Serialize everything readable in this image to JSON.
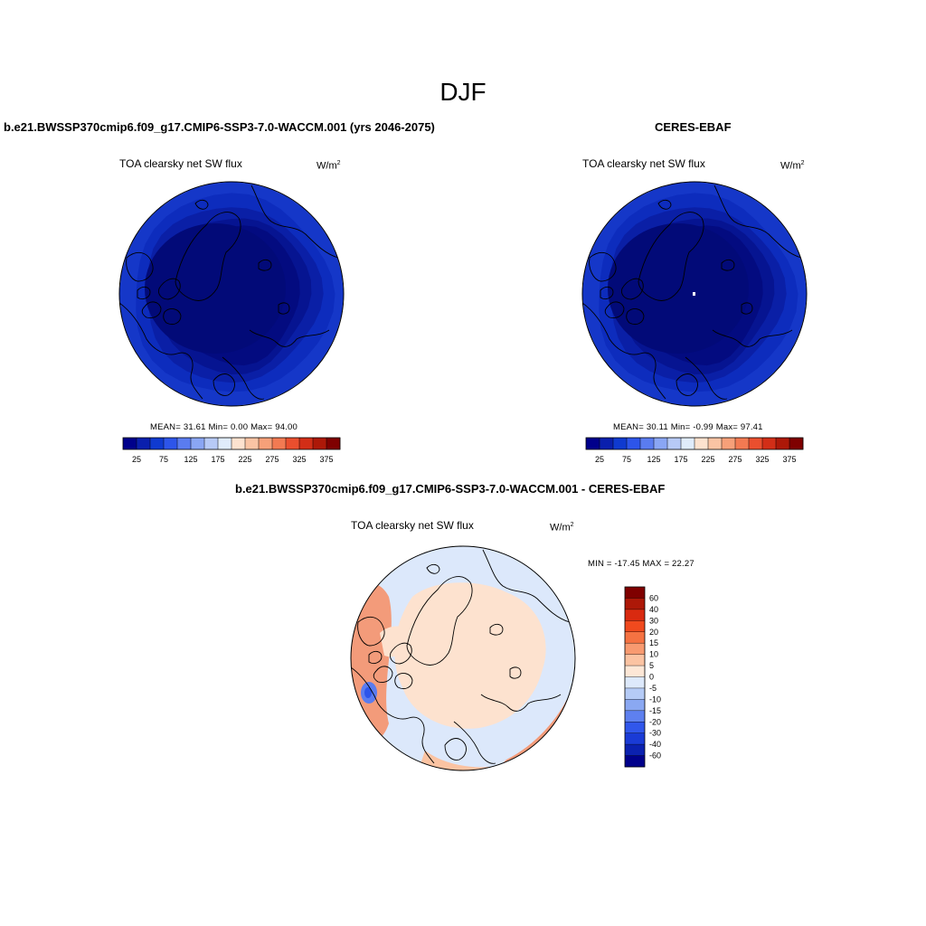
{
  "page": {
    "title": "DJF"
  },
  "panels": [
    {
      "case_title": "b.e21.BWSSP370cmip6.f09_g17.CMIP6-SSP3-7.0-WACCM.001 (yrs 2046-2075)",
      "variable": "TOA clearsky net SW flux",
      "units": "W/m",
      "units_exp": "2",
      "stats": "MEAN=  31.61  Min=   0.00  Max=  94.00"
    },
    {
      "case_title": "CERES-EBAF",
      "variable": "TOA clearsky net SW flux",
      "units": "W/m",
      "units_exp": "2",
      "stats": "MEAN=  30.11  Min=  -0.99  Max=  97.41"
    }
  ],
  "difference": {
    "case_title": "b.e21.BWSSP370cmip6.f09_g17.CMIP6-SSP3-7.0-WACCM.001 - CERES-EBAF",
    "variable": "TOA clearsky net SW flux",
    "units": "W/m",
    "units_exp": "2",
    "stats": "MIN = -17.45 MAX =  22.27"
  },
  "colorbar_abs": {
    "colors": [
      "#00008b",
      "#0a1fad",
      "#0f3ad0",
      "#2d55ea",
      "#5a7cf0",
      "#8aa6f4",
      "#b7caf7",
      "#e0ecfb",
      "#fde2cf",
      "#fac4a4",
      "#f6a079",
      "#f27a52",
      "#ea4f2e",
      "#d22e17",
      "#ad1808",
      "#7f0000"
    ],
    "labels": [
      "25",
      "75",
      "125",
      "175",
      "225",
      "275",
      "325",
      "375"
    ]
  },
  "colorbar_diff": {
    "colors": [
      "#7f0000",
      "#ad1808",
      "#d92a10",
      "#f04a1e",
      "#f57242",
      "#f89a70",
      "#fbc3a2",
      "#fde7d6",
      "#dde9fb",
      "#b5cbf6",
      "#8aa8f2",
      "#5e80ef",
      "#3157eb",
      "#1a3bd6",
      "#0b21b0",
      "#00008b"
    ],
    "labels": [
      "60",
      "40",
      "30",
      "20",
      "15",
      "10",
      "5",
      "0",
      "-5",
      "-10",
      "-15",
      "-20",
      "-30",
      "-40",
      "-60"
    ]
  },
  "map_fields": {
    "abs_levels": [
      {
        "fill": "#1537c8"
      },
      {
        "fill": "#0d2cbd"
      },
      {
        "fill": "#0a1fa6"
      },
      {
        "fill": "#061491"
      },
      {
        "fill": "#030b80"
      }
    ],
    "diff_background": "#dce8fb",
    "diff_cap": "#fde2cf",
    "diff_warm_edge": "#f39b7a",
    "diff_cold_patch": "#5a7cf0"
  }
}
